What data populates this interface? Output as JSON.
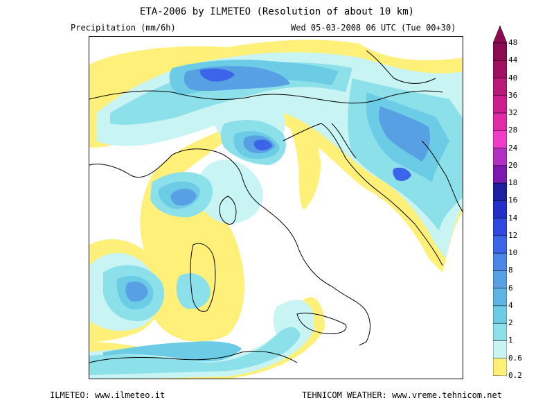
{
  "header": {
    "title": "ETA-2006 by ILMETEO (Resolution of about 10 km)",
    "variable": "Precipitation (mm/6h)",
    "timestamp": "Wed 05-03-2008 06 UTC (Tue 00+30)"
  },
  "legend": {
    "labels": [
      "48",
      "44",
      "40",
      "36",
      "32",
      "28",
      "24",
      "20",
      "18",
      "16",
      "14",
      "12",
      "10",
      "8",
      "6",
      "4",
      "2",
      "1",
      "0.6",
      "0.2"
    ],
    "colors": [
      "#8b0a50",
      "#a0105e",
      "#b81a78",
      "#cc1f8f",
      "#e02ba8",
      "#f03cc8",
      "#b030c0",
      "#7a1ab0",
      "#1e1ea0",
      "#2230c8",
      "#3048e0",
      "#3c64e8",
      "#4a86e8",
      "#58a0e4",
      "#5cb4e4",
      "#6ccce6",
      "#8ce0ea",
      "#c8f4f4",
      "#fff07a"
    ]
  },
  "colors": {
    "yellow": "#fff07a",
    "cyan_light": "#c8f4f4",
    "cyan": "#8ce0ea",
    "blue_light": "#6ccce6",
    "blue": "#58a0e4",
    "blue_dark": "#3c64e8",
    "navy": "#1e1ea0",
    "purple": "#7a1ab0"
  },
  "footer": {
    "left": "ILMETEO: www.ilmeteo.it",
    "right": "TEHNICOM WEATHER: www.vreme.tehnicom.net"
  }
}
